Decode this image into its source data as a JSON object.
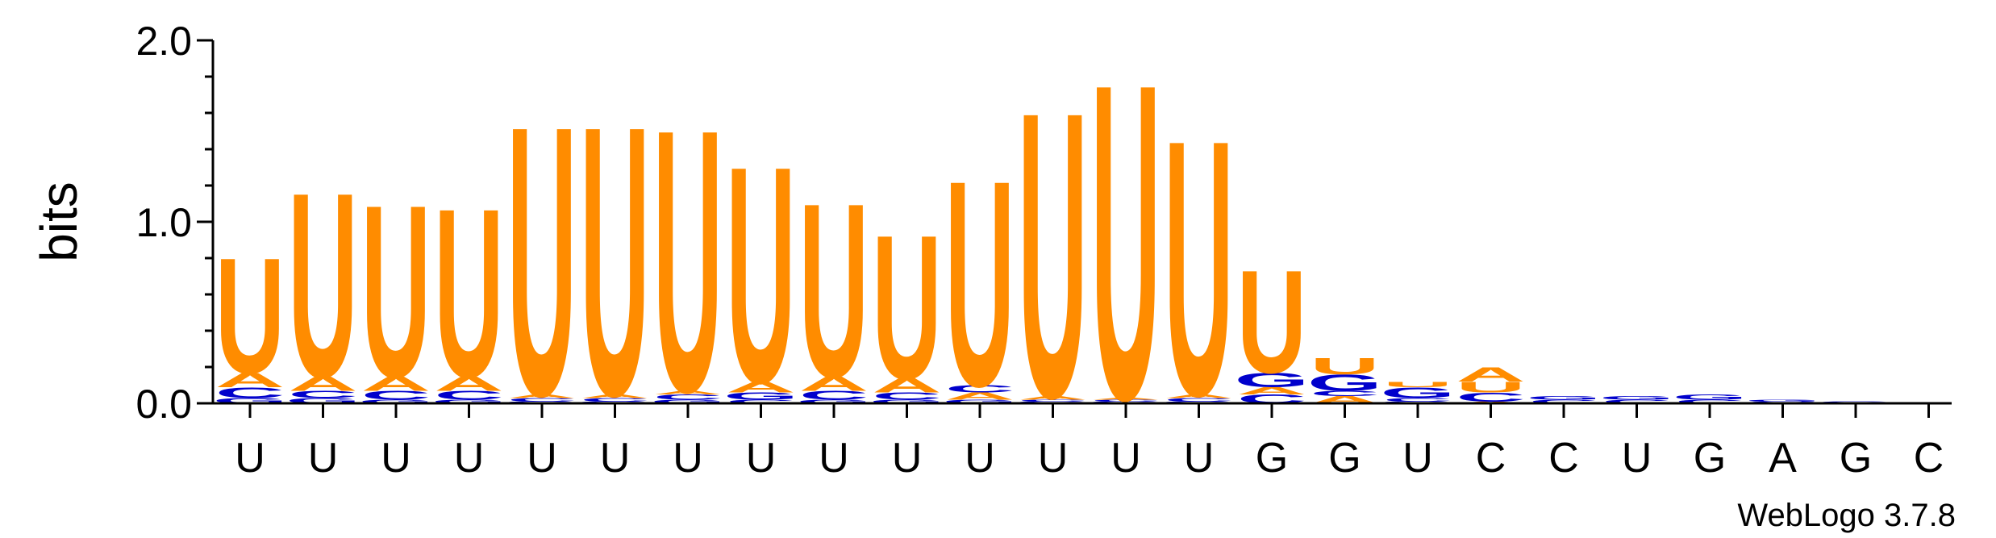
{
  "chart_data": {
    "type": "sequence-logo",
    "ylabel": "bits",
    "ylim": [
      0,
      2.0
    ],
    "yticks": [
      "0.0",
      "1.0",
      "2.0"
    ],
    "credit": "WebLogo 3.7.8",
    "colors": {
      "U": "#ff8c00",
      "A": "#ff8c00",
      "G": "#0000cc",
      "C": "#0000cc"
    },
    "positions": [
      {
        "label": "U",
        "stack": [
          {
            "l": "G",
            "h": 0.03
          },
          {
            "l": "C",
            "h": 0.06
          },
          {
            "l": "A",
            "h": 0.08
          },
          {
            "l": "U",
            "h": 0.65
          }
        ]
      },
      {
        "label": "U",
        "stack": [
          {
            "l": "G",
            "h": 0.03
          },
          {
            "l": "C",
            "h": 0.04
          },
          {
            "l": "A",
            "h": 0.08
          },
          {
            "l": "U",
            "h": 1.04
          }
        ]
      },
      {
        "label": "U",
        "stack": [
          {
            "l": "G",
            "h": 0.02
          },
          {
            "l": "C",
            "h": 0.05
          },
          {
            "l": "A",
            "h": 0.08
          },
          {
            "l": "U",
            "h": 0.97
          }
        ]
      },
      {
        "label": "U",
        "stack": [
          {
            "l": "G",
            "h": 0.02
          },
          {
            "l": "C",
            "h": 0.05
          },
          {
            "l": "A",
            "h": 0.08
          },
          {
            "l": "U",
            "h": 0.95
          }
        ]
      },
      {
        "label": "U",
        "stack": [
          {
            "l": "G",
            "h": 0.01
          },
          {
            "l": "C",
            "h": 0.02
          },
          {
            "l": "A",
            "h": 0.02
          },
          {
            "l": "U",
            "h": 1.52
          }
        ]
      },
      {
        "label": "U",
        "stack": [
          {
            "l": "G",
            "h": 0.01
          },
          {
            "l": "C",
            "h": 0.02
          },
          {
            "l": "A",
            "h": 0.02
          },
          {
            "l": "U",
            "h": 1.52
          }
        ]
      },
      {
        "label": "U",
        "stack": [
          {
            "l": "G",
            "h": 0.02
          },
          {
            "l": "C",
            "h": 0.03
          },
          {
            "l": "A",
            "h": 0.02
          },
          {
            "l": "U",
            "h": 1.48
          }
        ]
      },
      {
        "label": "U",
        "stack": [
          {
            "l": "C",
            "h": 0.02
          },
          {
            "l": "G",
            "h": 0.04
          },
          {
            "l": "A",
            "h": 0.06
          },
          {
            "l": "U",
            "h": 1.22
          }
        ]
      },
      {
        "label": "U",
        "stack": [
          {
            "l": "G",
            "h": 0.02
          },
          {
            "l": "C",
            "h": 0.05
          },
          {
            "l": "A",
            "h": 0.08
          },
          {
            "l": "U",
            "h": 0.98
          }
        ]
      },
      {
        "label": "U",
        "stack": [
          {
            "l": "G",
            "h": 0.02
          },
          {
            "l": "C",
            "h": 0.04
          },
          {
            "l": "A",
            "h": 0.08
          },
          {
            "l": "U",
            "h": 0.81
          }
        ]
      },
      {
        "label": "U",
        "stack": [
          {
            "l": "G",
            "h": 0.02
          },
          {
            "l": "A",
            "h": 0.04
          },
          {
            "l": "C",
            "h": 0.04
          },
          {
            "l": "U",
            "h": 1.16
          }
        ]
      },
      {
        "label": "U",
        "stack": [
          {
            "l": "G",
            "h": 0.01
          },
          {
            "l": "C",
            "h": 0.01
          },
          {
            "l": "A",
            "h": 0.02
          },
          {
            "l": "U",
            "h": 1.61
          }
        ]
      },
      {
        "label": "U",
        "stack": [
          {
            "l": "G",
            "h": 0.01
          },
          {
            "l": "C",
            "h": 0.01
          },
          {
            "l": "A",
            "h": 0.01
          },
          {
            "l": "U",
            "h": 1.78
          }
        ]
      },
      {
        "label": "U",
        "stack": [
          {
            "l": "G",
            "h": 0.01
          },
          {
            "l": "C",
            "h": 0.02
          },
          {
            "l": "A",
            "h": 0.02
          },
          {
            "l": "U",
            "h": 1.44
          }
        ]
      },
      {
        "label": "G",
        "stack": [
          {
            "l": "C",
            "h": 0.05
          },
          {
            "l": "A",
            "h": 0.04
          },
          {
            "l": "G",
            "h": 0.08
          },
          {
            "l": "U",
            "h": 0.58
          }
        ]
      },
      {
        "label": "G",
        "stack": [
          {
            "l": "A",
            "h": 0.04
          },
          {
            "l": "C",
            "h": 0.03
          },
          {
            "l": "G",
            "h": 0.09
          },
          {
            "l": "U",
            "h": 0.09
          }
        ]
      },
      {
        "label": "U",
        "stack": [
          {
            "l": "G",
            "h": 0.01
          },
          {
            "l": "C",
            "h": 0.02
          },
          {
            "l": "G",
            "h": 0.06
          },
          {
            "l": "U",
            "h": 0.03
          }
        ]
      },
      {
        "label": "C",
        "stack": [
          {
            "l": "A",
            "h": 0.01
          },
          {
            "l": "C",
            "h": 0.05
          },
          {
            "l": "U",
            "h": 0.06
          },
          {
            "l": "A",
            "h": 0.08
          }
        ]
      },
      {
        "label": "C",
        "stack": [
          {
            "l": "C",
            "h": 0.02
          },
          {
            "l": "G",
            "h": 0.02
          }
        ]
      },
      {
        "label": "U",
        "stack": [
          {
            "l": "C",
            "h": 0.02
          },
          {
            "l": "G",
            "h": 0.02
          }
        ]
      },
      {
        "label": "G",
        "stack": [
          {
            "l": "C",
            "h": 0.02
          },
          {
            "l": "G",
            "h": 0.03
          }
        ]
      },
      {
        "label": "A",
        "stack": [
          {
            "l": "C",
            "h": 0.01
          },
          {
            "l": "G",
            "h": 0.01
          }
        ]
      },
      {
        "label": "G",
        "stack": [
          {
            "l": "G",
            "h": 0.01
          }
        ]
      },
      {
        "label": "C",
        "stack": []
      }
    ]
  }
}
